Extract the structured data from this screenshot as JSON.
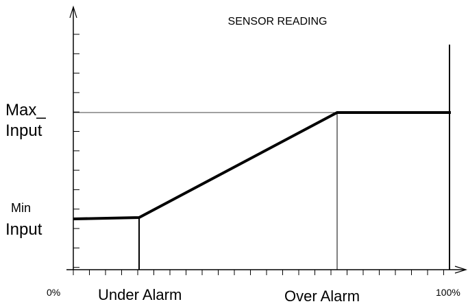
{
  "title": "SENSOR READING",
  "y_labels": {
    "max": [
      "Max_",
      "Input"
    ],
    "min": [
      "Min",
      "Input"
    ]
  },
  "x_labels": {
    "start": "0%",
    "under": "Under Alarm",
    "over": "Over Alarm",
    "end": "100%"
  }
}
